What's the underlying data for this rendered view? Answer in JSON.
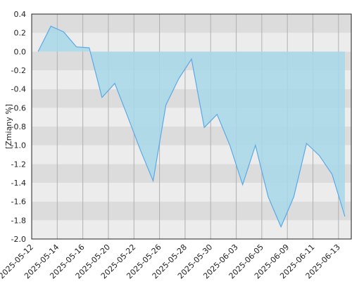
{
  "chart_data": {
    "type": "area",
    "y_label": "[Zmiany %]",
    "categories": [
      "2025-05-12",
      null,
      "2025-05-14",
      null,
      "2025-05-16",
      null,
      "2025-05-20",
      null,
      "2025-05-22",
      null,
      "2025-05-26",
      null,
      "2025-05-28",
      null,
      "2025-05-30",
      null,
      "2025-06-03",
      null,
      "2025-06-05",
      null,
      "2025-06-09",
      null,
      "2025-06-11",
      null,
      "2025-06-13"
    ],
    "series": [
      {
        "color": "#5aa9e6",
        "fill": "#a8d8ea",
        "values": [
          0.0,
          0.27,
          0.21,
          0.05,
          0.04,
          -0.49,
          -0.34,
          -0.69,
          -1.05,
          -1.38,
          -0.57,
          -0.29,
          -0.08,
          -0.81,
          -0.67,
          -1.0,
          -1.42,
          -1.0,
          -1.55,
          -1.87,
          -1.55,
          -0.98,
          -1.11,
          -1.31,
          -1.76
        ]
      }
    ],
    "ylim": [
      -2.0,
      0.4
    ],
    "yticks": [
      {
        "value": -2.0,
        "label": "-2.0"
      },
      -1.8,
      -1.6,
      -1.4,
      -1.2,
      {
        "value": -1.0,
        "label": "-1.0"
      },
      -0.8,
      -0.6,
      -0.4,
      -0.2,
      {
        "value": 0,
        "label": "0.0"
      },
      0.2,
      0.4
    ],
    "grid": true
  }
}
